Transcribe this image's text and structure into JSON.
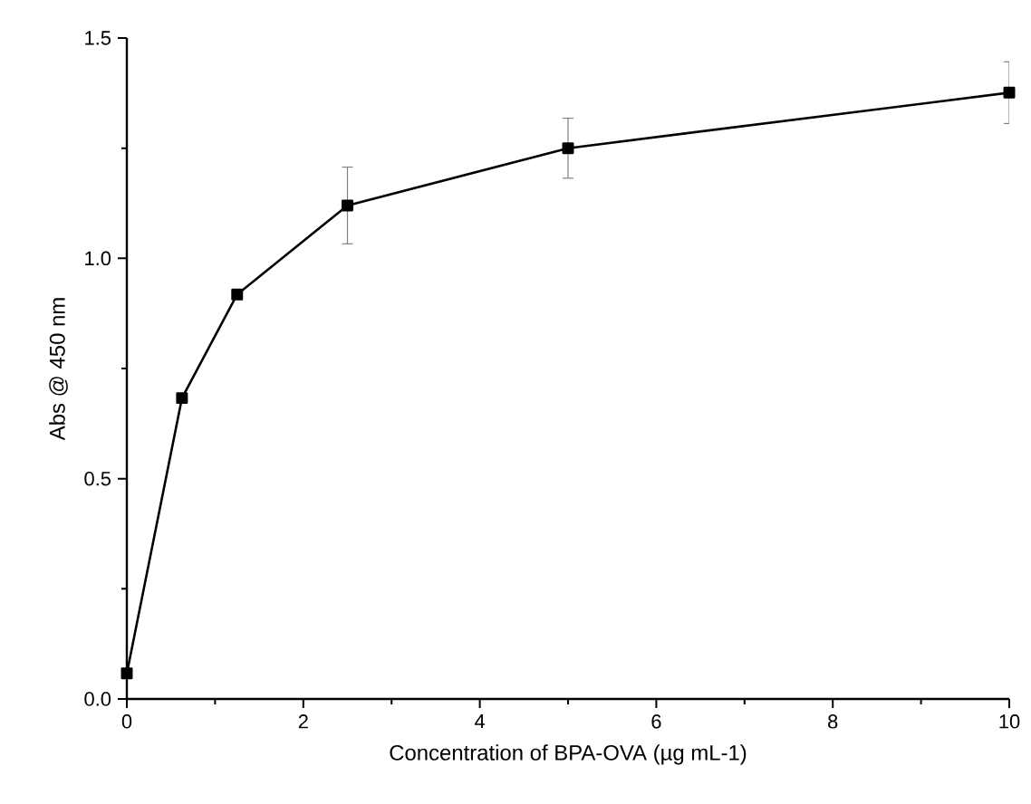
{
  "chart_data": {
    "type": "line",
    "xlabel": "Concentration of BPA-OVA (µg mL-1)",
    "ylabel": "Abs @ 450 nm",
    "x": [
      0,
      0.625,
      1.25,
      2.5,
      5,
      10
    ],
    "series": [
      {
        "color": "#000000",
        "values": [
          0.058,
          0.683,
          0.918,
          1.12,
          1.25,
          1.376
        ],
        "errors": [
          null,
          null,
          null,
          0.087,
          0.068,
          0.07
        ]
      }
    ],
    "xlim": [
      0,
      10
    ],
    "ylim": [
      0,
      1.5
    ],
    "xticks": [
      0,
      2,
      4,
      6,
      8,
      10
    ],
    "yticks": [
      {
        "value": 0,
        "label": "0.0"
      },
      {
        "value": 0.5,
        "label": "0.5"
      },
      {
        "value": 1,
        "label": "1.0"
      },
      {
        "value": 1.5,
        "label": "1.5"
      }
    ],
    "marker": "square",
    "line_style": "solid",
    "grid": false
  }
}
